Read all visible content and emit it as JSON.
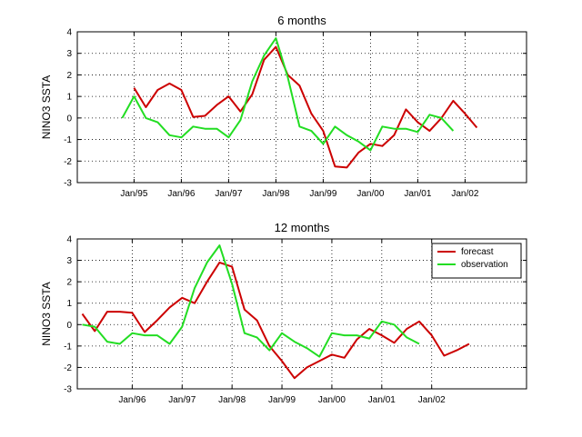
{
  "chart_data": [
    {
      "type": "line",
      "title": "6 months",
      "ylabel": "NINO3 SSTA",
      "xlabel": "",
      "ylim": [
        -3,
        4
      ],
      "yticks": [
        -3,
        -2,
        -1,
        0,
        1,
        2,
        3,
        4
      ],
      "xticks": [
        {
          "label": "Jan/95",
          "t": 1995.0
        },
        {
          "label": "Jan/96",
          "t": 1996.0
        },
        {
          "label": "Jan/97",
          "t": 1997.0
        },
        {
          "label": "Jan/98",
          "t": 1998.0
        },
        {
          "label": "Jan/99",
          "t": 1999.0
        },
        {
          "label": "Jan/00",
          "t": 2000.0
        },
        {
          "label": "Jan/01",
          "t": 2001.0
        },
        {
          "label": "Jan/02",
          "t": 2002.0
        }
      ],
      "xlim": [
        1993.8,
        2003.3
      ],
      "grid": true,
      "legend": null,
      "series": [
        {
          "color": "#cc0000",
          "x": [
            1995.0,
            1995.25,
            1995.5,
            1995.75,
            1996.0,
            1996.25,
            1996.5,
            1996.75,
            1997.0,
            1997.25,
            1997.5,
            1997.75,
            1998.0,
            1998.25,
            1998.5,
            1998.75,
            1999.0,
            1999.25,
            1999.5,
            1999.75,
            2000.0,
            2000.25,
            2000.5,
            2000.75,
            2001.0,
            2001.25,
            2001.5,
            2001.75,
            2002.0,
            2002.25
          ],
          "y": [
            1.4,
            0.5,
            1.3,
            1.6,
            1.3,
            0.05,
            0.1,
            0.6,
            1.0,
            0.3,
            1.1,
            2.7,
            3.3,
            2.0,
            1.5,
            0.2,
            -0.6,
            -2.25,
            -2.3,
            -1.6,
            -1.2,
            -1.3,
            -0.8,
            0.4,
            -0.2,
            -0.6,
            0.0,
            0.8,
            0.2,
            -0.45
          ]
        },
        {
          "color": "#22dd22",
          "x": [
            1994.75,
            1995.0,
            1995.25,
            1995.5,
            1995.75,
            1996.0,
            1996.25,
            1996.5,
            1996.75,
            1997.0,
            1997.25,
            1997.5,
            1997.75,
            1998.0,
            1998.25,
            1998.5,
            1998.75,
            1999.0,
            1999.25,
            1999.5,
            1999.75,
            2000.0,
            2000.25,
            2000.5,
            2000.75,
            2001.0,
            2001.25,
            2001.5,
            2001.75
          ],
          "y": [
            0.0,
            1.0,
            0.0,
            -0.2,
            -0.8,
            -0.9,
            -0.4,
            -0.5,
            -0.5,
            -0.9,
            -0.1,
            1.7,
            2.9,
            3.7,
            1.9,
            -0.4,
            -0.6,
            -1.2,
            -0.4,
            -0.8,
            -1.1,
            -1.5,
            -0.4,
            -0.5,
            -0.5,
            -0.65,
            0.15,
            0.0,
            -0.6
          ]
        }
      ]
    },
    {
      "type": "line",
      "title": "12 months",
      "ylabel": "NINO3 SSTA",
      "xlabel": "",
      "ylim": [
        -3,
        4
      ],
      "yticks": [
        -3,
        -2,
        -1,
        0,
        1,
        2,
        3,
        4
      ],
      "xticks": [
        {
          "label": "Jan/96",
          "t": 1996.0
        },
        {
          "label": "Jan/97",
          "t": 1997.0
        },
        {
          "label": "Jan/98",
          "t": 1998.0
        },
        {
          "label": "Jan/99",
          "t": 1999.0
        },
        {
          "label": "Jan/00",
          "t": 2000.0
        },
        {
          "label": "Jan/01",
          "t": 2001.0
        },
        {
          "label": "Jan/02",
          "t": 2002.0
        }
      ],
      "xlim": [
        1994.9,
        2003.9
      ],
      "grid": true,
      "legend": "top-right",
      "series": [
        {
          "name": "forecast",
          "color": "#cc0000",
          "x": [
            1995.0,
            1995.25,
            1995.5,
            1995.75,
            1996.0,
            1996.25,
            1996.5,
            1996.75,
            1997.0,
            1997.25,
            1997.5,
            1997.75,
            1998.0,
            1998.25,
            1998.5,
            1998.75,
            1999.0,
            1999.25,
            1999.5,
            1999.75,
            2000.0,
            2000.25,
            2000.5,
            2000.75,
            2001.0,
            2001.25,
            2001.5,
            2001.75,
            2002.0,
            2002.25,
            2002.5,
            2002.75
          ],
          "y": [
            0.5,
            -0.3,
            0.6,
            0.6,
            0.55,
            -0.35,
            0.2,
            0.8,
            1.25,
            1.0,
            2.0,
            2.9,
            2.7,
            0.7,
            0.2,
            -1.0,
            -1.7,
            -2.5,
            -2.0,
            -1.7,
            -1.4,
            -1.55,
            -0.7,
            -0.2,
            -0.5,
            -0.85,
            -0.2,
            0.15,
            -0.5,
            -1.45,
            -1.2,
            -0.9
          ]
        },
        {
          "name": "observation",
          "color": "#22dd22",
          "x": [
            1995.0,
            1995.25,
            1995.5,
            1995.75,
            1996.0,
            1996.25,
            1996.5,
            1996.75,
            1997.0,
            1997.25,
            1997.5,
            1997.75,
            1998.0,
            1998.25,
            1998.5,
            1998.75,
            1999.0,
            1999.25,
            1999.5,
            1999.75,
            2000.0,
            2000.25,
            2000.5,
            2000.75,
            2001.0,
            2001.25,
            2001.5,
            2001.75
          ],
          "y": [
            0.0,
            -0.1,
            -0.8,
            -0.9,
            -0.4,
            -0.5,
            -0.5,
            -0.9,
            -0.1,
            1.7,
            2.9,
            3.7,
            1.9,
            -0.4,
            -0.6,
            -1.2,
            -0.4,
            -0.8,
            -1.1,
            -1.5,
            -0.4,
            -0.5,
            -0.5,
            -0.65,
            0.15,
            0.0,
            -0.6,
            -0.9
          ]
        }
      ]
    }
  ]
}
